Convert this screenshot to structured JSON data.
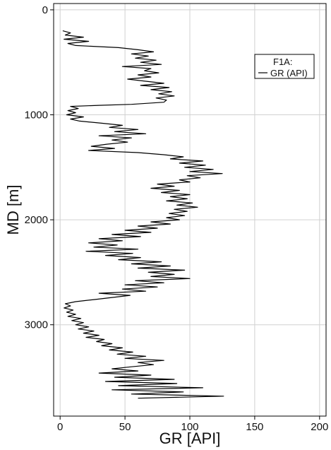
{
  "chart_data": {
    "type": "line",
    "title": "",
    "xlabel": "GR [API]",
    "ylabel": "MD [m]",
    "xlim": [
      -5,
      205
    ],
    "ylim": [
      -60,
      3870
    ],
    "y_inverted": true,
    "grid": true,
    "x_ticks": [
      0,
      50,
      100,
      150,
      200
    ],
    "y_ticks": [
      0,
      1000,
      2000,
      3000
    ],
    "legend_position": "top-right",
    "line_color": "#000000",
    "series": [
      {
        "name": "GR (API)",
        "legend_header": "F1A:",
        "points": [
          [
            2,
            200
          ],
          [
            8,
            220
          ],
          [
            4,
            240
          ],
          [
            18,
            260
          ],
          [
            3,
            280
          ],
          [
            22,
            300
          ],
          [
            6,
            320
          ],
          [
            12,
            340
          ],
          [
            45,
            360
          ],
          [
            60,
            380
          ],
          [
            72,
            400
          ],
          [
            55,
            420
          ],
          [
            68,
            440
          ],
          [
            58,
            460
          ],
          [
            74,
            480
          ],
          [
            62,
            500
          ],
          [
            78,
            520
          ],
          [
            48,
            540
          ],
          [
            70,
            560
          ],
          [
            65,
            580
          ],
          [
            76,
            600
          ],
          [
            60,
            620
          ],
          [
            70,
            640
          ],
          [
            52,
            660
          ],
          [
            66,
            680
          ],
          [
            80,
            700
          ],
          [
            62,
            720
          ],
          [
            84,
            740
          ],
          [
            70,
            760
          ],
          [
            86,
            780
          ],
          [
            76,
            800
          ],
          [
            88,
            820
          ],
          [
            74,
            840
          ],
          [
            82,
            860
          ],
          [
            80,
            880
          ],
          [
            55,
            900
          ],
          [
            30,
            910
          ],
          [
            8,
            920
          ],
          [
            14,
            940
          ],
          [
            6,
            960
          ],
          [
            12,
            980
          ],
          [
            5,
            1000
          ],
          [
            18,
            1020
          ],
          [
            8,
            1040
          ],
          [
            15,
            1060
          ],
          [
            32,
            1080
          ],
          [
            48,
            1100
          ],
          [
            38,
            1120
          ],
          [
            60,
            1140
          ],
          [
            42,
            1160
          ],
          [
            66,
            1180
          ],
          [
            30,
            1200
          ],
          [
            55,
            1220
          ],
          [
            40,
            1240
          ],
          [
            52,
            1260
          ],
          [
            36,
            1280
          ],
          [
            24,
            1300
          ],
          [
            42,
            1320
          ],
          [
            22,
            1340
          ],
          [
            60,
            1360
          ],
          [
            80,
            1380
          ],
          [
            95,
            1400
          ],
          [
            85,
            1420
          ],
          [
            110,
            1440
          ],
          [
            92,
            1460
          ],
          [
            112,
            1480
          ],
          [
            96,
            1500
          ],
          [
            118,
            1520
          ],
          [
            100,
            1540
          ],
          [
            125,
            1560
          ],
          [
            98,
            1580
          ],
          [
            108,
            1600
          ],
          [
            92,
            1620
          ],
          [
            100,
            1640
          ],
          [
            75,
            1660
          ],
          [
            88,
            1680
          ],
          [
            70,
            1700
          ],
          [
            92,
            1720
          ],
          [
            78,
            1740
          ],
          [
            100,
            1760
          ],
          [
            85,
            1780
          ],
          [
            98,
            1800
          ],
          [
            82,
            1820
          ],
          [
            102,
            1840
          ],
          [
            90,
            1860
          ],
          [
            106,
            1880
          ],
          [
            88,
            1900
          ],
          [
            98,
            1920
          ],
          [
            84,
            1940
          ],
          [
            96,
            1960
          ],
          [
            82,
            1980
          ],
          [
            92,
            2000
          ],
          [
            70,
            2020
          ],
          [
            85,
            2040
          ],
          [
            60,
            2060
          ],
          [
            75,
            2080
          ],
          [
            50,
            2100
          ],
          [
            70,
            2120
          ],
          [
            40,
            2140
          ],
          [
            62,
            2160
          ],
          [
            30,
            2180
          ],
          [
            48,
            2200
          ],
          [
            22,
            2220
          ],
          [
            44,
            2240
          ],
          [
            26,
            2260
          ],
          [
            60,
            2280
          ],
          [
            20,
            2300
          ],
          [
            56,
            2320
          ],
          [
            35,
            2340
          ],
          [
            62,
            2360
          ],
          [
            45,
            2380
          ],
          [
            78,
            2400
          ],
          [
            55,
            2420
          ],
          [
            85,
            2440
          ],
          [
            60,
            2460
          ],
          [
            96,
            2480
          ],
          [
            68,
            2500
          ],
          [
            88,
            2520
          ],
          [
            70,
            2540
          ],
          [
            100,
            2560
          ],
          [
            58,
            2580
          ],
          [
            80,
            2600
          ],
          [
            50,
            2620
          ],
          [
            75,
            2640
          ],
          [
            48,
            2660
          ],
          [
            66,
            2680
          ],
          [
            30,
            2700
          ],
          [
            54,
            2720
          ],
          [
            40,
            2740
          ],
          [
            26,
            2760
          ],
          [
            12,
            2780
          ],
          [
            4,
            2800
          ],
          [
            8,
            2820
          ],
          [
            3,
            2840
          ],
          [
            10,
            2860
          ],
          [
            5,
            2880
          ],
          [
            12,
            2900
          ],
          [
            6,
            2920
          ],
          [
            16,
            2940
          ],
          [
            9,
            2960
          ],
          [
            18,
            2980
          ],
          [
            12,
            3000
          ],
          [
            22,
            3020
          ],
          [
            14,
            3040
          ],
          [
            26,
            3060
          ],
          [
            18,
            3080
          ],
          [
            30,
            3100
          ],
          [
            20,
            3120
          ],
          [
            34,
            3140
          ],
          [
            28,
            3160
          ],
          [
            40,
            3180
          ],
          [
            32,
            3200
          ],
          [
            48,
            3220
          ],
          [
            38,
            3240
          ],
          [
            56,
            3260
          ],
          [
            44,
            3280
          ],
          [
            66,
            3300
          ],
          [
            50,
            3320
          ],
          [
            80,
            3340
          ],
          [
            60,
            3360
          ],
          [
            72,
            3380
          ],
          [
            55,
            3400
          ],
          [
            40,
            3420
          ],
          [
            60,
            3440
          ],
          [
            30,
            3460
          ],
          [
            70,
            3480
          ],
          [
            42,
            3500
          ],
          [
            88,
            3520
          ],
          [
            35,
            3540
          ],
          [
            90,
            3560
          ],
          [
            45,
            3580
          ],
          [
            110,
            3600
          ],
          [
            40,
            3620
          ],
          [
            95,
            3640
          ],
          [
            55,
            3660
          ],
          [
            126,
            3680
          ],
          [
            60,
            3700
          ]
        ]
      }
    ]
  }
}
